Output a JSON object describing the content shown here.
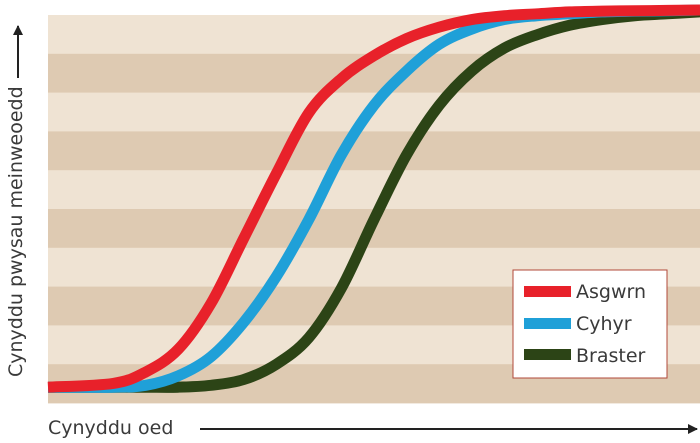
{
  "chart_data": {
    "type": "line",
    "title": "",
    "xlabel": "Cynyddu oed",
    "ylabel": "Cynyddu pwysau meinweoedd",
    "xlim": [
      0,
      100
    ],
    "ylim": [
      0,
      100
    ],
    "grid": "alternating horizontal bands",
    "legend_position": "bottom-right",
    "colors": {
      "band_light": "#efe3d3",
      "band_dark": "#decab2",
      "axis": "#222222"
    },
    "series": [
      {
        "name": "Asgwrn",
        "color": "#e8212a",
        "x": [
          0,
          10,
          15,
          20,
          25,
          30,
          35,
          40,
          45,
          50,
          55,
          60,
          65,
          70,
          75,
          80,
          85,
          90,
          95,
          100
        ],
        "y": [
          1,
          2,
          5,
          11,
          23,
          40,
          57,
          73,
          82,
          88,
          92.5,
          95.5,
          97.5,
          98.5,
          99,
          99.5,
          99.7,
          99.8,
          99.9,
          100
        ]
      },
      {
        "name": "Cyhyr",
        "color": "#1fa0d8",
        "x": [
          0,
          10,
          15,
          20,
          25,
          30,
          35,
          40,
          45,
          50,
          55,
          60,
          65,
          70,
          75,
          80,
          85,
          90,
          95,
          100
        ],
        "y": [
          1,
          1,
          1.5,
          4,
          9,
          18,
          30,
          45,
          62,
          75,
          84,
          91,
          95,
          97.5,
          98.5,
          99,
          99.5,
          99.7,
          99.8,
          100
        ]
      },
      {
        "name": "Braster",
        "color": "#2c4416",
        "x": [
          0,
          10,
          15,
          20,
          25,
          30,
          35,
          40,
          45,
          50,
          55,
          60,
          65,
          70,
          75,
          80,
          85,
          90,
          95,
          100
        ],
        "y": [
          1,
          1,
          1,
          1,
          1.5,
          3,
          7,
          14,
          27,
          45,
          62,
          75,
          84,
          90,
          93.5,
          96,
          97.5,
          98.5,
          99,
          99.5
        ]
      }
    ]
  }
}
